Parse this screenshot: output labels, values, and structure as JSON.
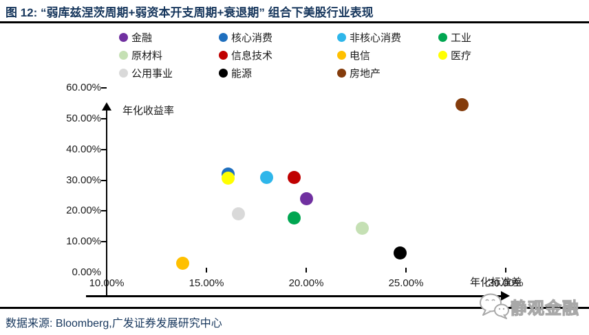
{
  "header": {
    "title": "图 12: “弱库兹涅茨周期+弱资本开支周期+衰退期” 组合下美股行业表现"
  },
  "chart_data": {
    "type": "scatter",
    "title": "“弱库兹涅茨周期+弱资本开支周期+衰退期”组合下美股行业表现",
    "xlabel": "年化标准差",
    "ylabel": "年化收益率",
    "xlim": [
      10,
      30
    ],
    "ylim": [
      0,
      60
    ],
    "grid": false,
    "legend_position": "top",
    "x_ticks": [
      "10.00%",
      "15.00%",
      "20.00%",
      "25.00%",
      "30.00%"
    ],
    "y_ticks": [
      "0.00%",
      "10.00%",
      "20.00%",
      "30.00%",
      "40.00%",
      "50.00%",
      "60.00%"
    ],
    "x_unit": "percent",
    "y_unit": "percent",
    "series": [
      {
        "name": "金融",
        "color": "#7030a0",
        "x": 20.0,
        "y": 24.0
      },
      {
        "name": "核心消费",
        "color": "#1f6fbe",
        "x": 16.1,
        "y": 32.0
      },
      {
        "name": "非核心消费",
        "color": "#2eb6ea",
        "x": 18.0,
        "y": 31.0
      },
      {
        "name": "工业",
        "color": "#00a651",
        "x": 19.4,
        "y": 17.7
      },
      {
        "name": "原材料",
        "color": "#c5e0b4",
        "x": 22.8,
        "y": 14.4
      },
      {
        "name": "信息技术",
        "color": "#c00000",
        "x": 19.4,
        "y": 30.8
      },
      {
        "name": "电信",
        "color": "#ffc000",
        "x": 13.8,
        "y": 3.0
      },
      {
        "name": "医疗",
        "color": "#ffff00",
        "x": 16.1,
        "y": 30.6
      },
      {
        "name": "公用事业",
        "color": "#d9d9d9",
        "x": 16.6,
        "y": 19.0
      },
      {
        "name": "能源",
        "color": "#000000",
        "x": 24.7,
        "y": 6.3
      },
      {
        "name": "房地产",
        "color": "#843c0c",
        "x": 27.8,
        "y": 54.5
      }
    ]
  },
  "footer": {
    "source": "数据来源: Bloomberg,广发证券发展研究中心",
    "watermark": "静观金融"
  },
  "colors": {
    "title_text": "#16365c",
    "axis_line": "#000000",
    "watermark_gray": "#a8a8a8"
  }
}
